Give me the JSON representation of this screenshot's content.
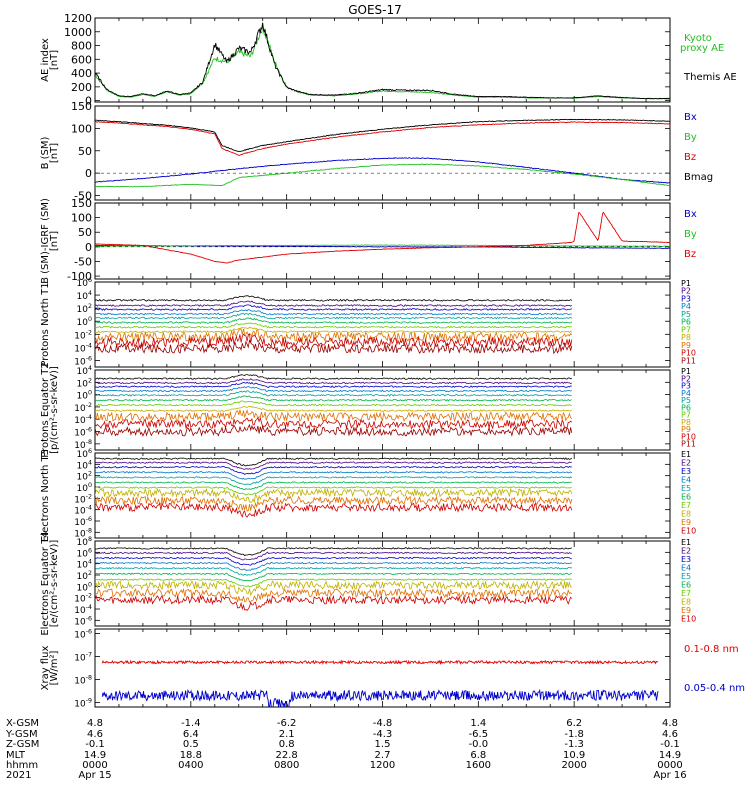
{
  "title": "GOES-17",
  "colors": {
    "black": "#000000",
    "red": "#e00000",
    "green": "#22c022",
    "blue": "#0000cc"
  },
  "chart_data": [
    {
      "type": "line",
      "panel": "ae",
      "ylabel": "AE index [nT]",
      "ylim": [
        -20,
        1200
      ],
      "yticks": [
        "0",
        "200",
        "400",
        "600",
        "800",
        "1000",
        "1200"
      ],
      "ytick_values": [
        0,
        200,
        400,
        600,
        800,
        1000,
        1200
      ],
      "series": [
        {
          "name": "Kyoto proxy AE",
          "color": "#22c022",
          "x": [
            0,
            0.5,
            1,
            1.5,
            2,
            2.5,
            3,
            3.5,
            4,
            4.5,
            5,
            5.5,
            6,
            6.5,
            7,
            7.5,
            8,
            8.5,
            9,
            10,
            11,
            12,
            13,
            14,
            15,
            16,
            17,
            18,
            19,
            20,
            21,
            22,
            23,
            24
          ],
          "y": [
            380,
            150,
            60,
            50,
            90,
            60,
            130,
            80,
            100,
            260,
            620,
            560,
            700,
            640,
            1080,
            560,
            200,
            120,
            80,
            70,
            100,
            140,
            130,
            120,
            80,
            50,
            50,
            40,
            40,
            35,
            60,
            40,
            30,
            25
          ]
        },
        {
          "name": "Themis AE",
          "color": "#000000",
          "x": [
            0,
            0.5,
            1,
            1.5,
            2,
            2.5,
            3,
            3.5,
            4,
            4.5,
            5,
            5.5,
            6,
            6.5,
            7,
            7.5,
            8,
            8.5,
            9,
            10,
            11,
            12,
            13,
            14,
            15,
            16,
            17,
            18,
            19,
            20,
            21,
            22,
            23,
            24
          ],
          "y": [
            400,
            160,
            70,
            60,
            100,
            70,
            140,
            90,
            110,
            270,
            820,
            560,
            760,
            700,
            1120,
            520,
            190,
            130,
            90,
            80,
            110,
            160,
            150,
            150,
            90,
            60,
            60,
            50,
            40,
            40,
            70,
            45,
            30,
            30
          ]
        }
      ],
      "legend": [
        "Kyoto",
        "proxy AE",
        "Themis AE"
      ]
    },
    {
      "type": "line",
      "panel": "bsm",
      "ylabel": "B (SM) [nT]",
      "ylim": [
        -60,
        150
      ],
      "yticks": [
        "150",
        "100",
        "50",
        "0",
        "-50"
      ],
      "ytick_values": [
        150,
        100,
        50,
        0,
        -50
      ],
      "series": [
        {
          "name": "Bx",
          "color": "#0000cc",
          "x": [
            0,
            2,
            4,
            6,
            8,
            10,
            12,
            13,
            14,
            16,
            18,
            20,
            22,
            24
          ],
          "y": [
            -20,
            -12,
            -2,
            10,
            20,
            28,
            33,
            34,
            33,
            25,
            13,
            0,
            -14,
            -22
          ]
        },
        {
          "name": "By",
          "color": "#22c022",
          "x": [
            0,
            2,
            4,
            5.3,
            6,
            8,
            10,
            12,
            14,
            16,
            18,
            20,
            22,
            24
          ],
          "y": [
            -30,
            -30,
            -25,
            -28,
            -10,
            0,
            10,
            18,
            20,
            16,
            8,
            -2,
            -14,
            -28
          ]
        },
        {
          "name": "Bz",
          "color": "#e00000",
          "x": [
            0,
            1,
            2,
            3,
            4,
            5,
            5.3,
            6,
            7,
            8,
            10,
            12,
            14,
            16,
            18,
            20,
            22,
            24
          ],
          "y": [
            115,
            112,
            108,
            104,
            98,
            88,
            55,
            40,
            55,
            65,
            80,
            92,
            102,
            108,
            112,
            114,
            113,
            110
          ]
        },
        {
          "name": "Bmag",
          "color": "#000000",
          "x": [
            0,
            1,
            2,
            3,
            4,
            5,
            5.3,
            6,
            7,
            8,
            10,
            12,
            14,
            16,
            18,
            20,
            22,
            24
          ],
          "y": [
            118,
            115,
            111,
            107,
            101,
            92,
            62,
            48,
            62,
            70,
            86,
            98,
            108,
            115,
            118,
            120,
            119,
            116
          ]
        }
      ],
      "legend": [
        "Bx",
        "By",
        "Bz",
        "Bmag"
      ]
    },
    {
      "type": "line",
      "panel": "bdiff",
      "ylabel": "B (SM)-IGRF (SM) [nT]",
      "ylim": [
        -110,
        150
      ],
      "yticks": [
        "150",
        "100",
        "50",
        "0",
        "-50",
        "-100"
      ],
      "ytick_values": [
        150,
        100,
        50,
        0,
        -50,
        -100
      ],
      "series": [
        {
          "name": "Bx",
          "color": "#0000cc",
          "x": [
            0,
            4,
            8,
            12,
            16,
            20,
            24
          ],
          "y": [
            5,
            3,
            2,
            0,
            0,
            -3,
            -5
          ]
        },
        {
          "name": "By",
          "color": "#22c022",
          "x": [
            0,
            4,
            8,
            12,
            16,
            20,
            24
          ],
          "y": [
            2,
            4,
            5,
            6,
            5,
            3,
            2
          ]
        },
        {
          "name": "Bz",
          "color": "#e00000",
          "x": [
            0,
            2,
            3,
            4,
            5,
            5.5,
            6,
            7,
            8,
            10,
            12,
            14,
            16,
            18,
            19.9,
            20,
            20.2,
            21,
            21.2,
            22,
            24
          ],
          "y": [
            10,
            5,
            -10,
            -25,
            -50,
            -55,
            -45,
            -35,
            -25,
            -15,
            -8,
            -3,
            0,
            5,
            15,
            20,
            120,
            20,
            120,
            20,
            15
          ]
        }
      ],
      "legend": [
        "Bx",
        "By",
        "Bz"
      ]
    },
    {
      "type": "line",
      "panel": "protons-north",
      "ylabel": "Protons North T1",
      "ylim_log": [
        -7,
        6
      ],
      "yticks": [
        "10^6",
        "10^4",
        "10^2",
        "10^0",
        "10^-2",
        "10^-4",
        "10^-6"
      ],
      "ytick_values": [
        6,
        4,
        2,
        0,
        -2,
        -4,
        -6
      ],
      "legend": [
        "P1",
        "P2",
        "P3",
        "P4",
        "P5",
        "P6",
        "P7",
        "P8",
        "P9",
        "P10",
        "P11"
      ],
      "levels": [
        3.2,
        2.4,
        1.8,
        1.1,
        0.5,
        -0.2,
        -0.9,
        -1.6,
        -2.4,
        -3.2,
        -4.2
      ]
    },
    {
      "type": "line",
      "panel": "protons-equator",
      "ylabel": "Protons Equator T2 [p/(cm²-s-sr-keV)]",
      "ylim_log": [
        -9,
        4
      ],
      "yticks": [
        "10^4",
        "10^2",
        "10^0",
        "10^-2",
        "10^-4",
        "10^-6",
        "10^-8"
      ],
      "ytick_values": [
        4,
        2,
        0,
        -2,
        -4,
        -6,
        -8
      ],
      "legend": [
        "P1",
        "P2",
        "P3",
        "P4",
        "P5",
        "P6",
        "P7",
        "P8",
        "P9",
        "P10",
        "P11"
      ],
      "levels": [
        2.6,
        1.9,
        1.3,
        0.6,
        -0.1,
        -0.9,
        -1.7,
        -2.6,
        -3.6,
        -4.8,
        -6.0
      ]
    },
    {
      "type": "line",
      "panel": "electrons-north",
      "ylabel": "Electrons North T3",
      "ylim_log": [
        -9,
        6
      ],
      "yticks": [
        "10^6",
        "10^4",
        "10^2",
        "10^0",
        "10^-2",
        "10^-4",
        "10^-6",
        "10^-8"
      ],
      "ytick_values": [
        6,
        4,
        2,
        0,
        -2,
        -4,
        -6,
        -8
      ],
      "legend": [
        "E1",
        "E2",
        "E3",
        "E4",
        "E5",
        "E6",
        "E7",
        "E8",
        "E9",
        "E10"
      ],
      "levels": [
        5.0,
        4.3,
        3.5,
        2.6,
        1.7,
        0.8,
        -0.1,
        -1.0,
        -2.4,
        -3.6
      ]
    },
    {
      "type": "line",
      "panel": "electrons-equator",
      "ylabel": "Electrons Equator T4 [e/(cm²-s-sr-keV)]",
      "ylim_log": [
        -7,
        8
      ],
      "yticks": [
        "10^8",
        "10^6",
        "10^4",
        "10^2",
        "10^0",
        "10^-2",
        "10^-4",
        "10^-6"
      ],
      "ytick_values": [
        8,
        6,
        4,
        2,
        0,
        -2,
        -4,
        -6
      ],
      "legend": [
        "E1",
        "E2",
        "E3",
        "E4",
        "E5",
        "E6",
        "E7",
        "E8",
        "E9",
        "E10"
      ],
      "levels": [
        6.7,
        5.9,
        5.0,
        4.1,
        3.2,
        2.2,
        1.2,
        0.2,
        -1.2,
        -2.4
      ]
    },
    {
      "type": "line",
      "panel": "xray",
      "ylabel": "Xray flux [W/m²]",
      "ylim_log": [
        -9.2,
        -5.8
      ],
      "yticks": [
        "10^-6",
        "10^-7",
        "10^-8",
        "10^-9"
      ],
      "ytick_values": [
        -6,
        -7,
        -8,
        -9
      ],
      "series": [
        {
          "name": "0.1-0.8 nm",
          "color": "#e00000",
          "level": -7.25
        },
        {
          "name": "0.05-0.4 nm",
          "color": "#0000cc",
          "level": -8.7
        }
      ],
      "legend": [
        "0.1-0.8 nm",
        "0.05-0.4 nm"
      ]
    }
  ],
  "xaxis": {
    "rows": [
      {
        "label": "X-GSM",
        "values": [
          "4.8",
          "-1.4",
          "-6.2",
          "-4.8",
          "1.4",
          "6.2",
          "4.8"
        ]
      },
      {
        "label": "Y-GSM",
        "values": [
          "4.6",
          "6.4",
          "2.1",
          "-4.3",
          "-6.5",
          "-1.8",
          "4.6"
        ]
      },
      {
        "label": "Z-GSM",
        "values": [
          "-0.1",
          "0.5",
          "0.8",
          "1.5",
          "-0.0",
          "-1.3",
          "-0.1"
        ]
      },
      {
        "label": "MLT",
        "values": [
          "14.9",
          "18.8",
          "22.8",
          "2.7",
          "6.8",
          "10.9",
          "14.9"
        ]
      },
      {
        "label": "hhmm",
        "values": [
          "0000",
          "0400",
          "0800",
          "1200",
          "1600",
          "2000",
          "0000"
        ]
      },
      {
        "label": "2021",
        "values": [
          "Apr 15",
          "",
          "",
          "",
          "",
          "",
          "Apr 16"
        ]
      }
    ]
  }
}
